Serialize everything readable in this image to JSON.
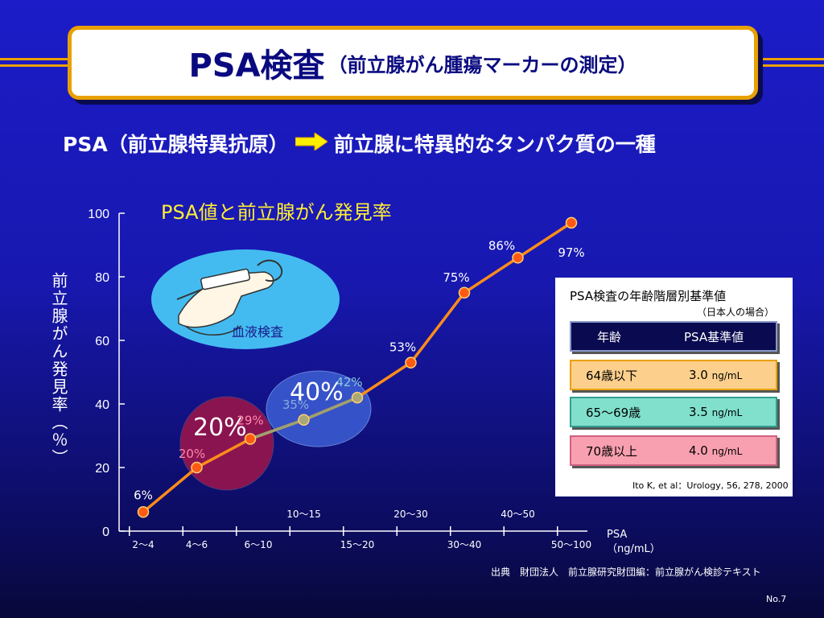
{
  "title": {
    "main": "PSA検査",
    "sub": "（前立腺がん腫瘍マーカーの測定）"
  },
  "subtitle": {
    "left": "PSA（前立腺特異抗原）",
    "right": "前立腺に特異的なタンパク質の一種"
  },
  "chart_data": {
    "type": "line",
    "title": "PSA値と前立腺がん発見率",
    "ylabel": "前立腺がん発見率（％）",
    "xlabel": "PSA\n（ng/mL）",
    "xlabel_lines": [
      "PSA",
      "（ng/mL）"
    ],
    "ylim": [
      0,
      100
    ],
    "yticks": [
      0,
      20,
      40,
      60,
      80,
      100
    ],
    "categories_lower": [
      "2〜4",
      "4〜6",
      "6〜10",
      "15〜20",
      "30〜40",
      "50〜100"
    ],
    "categories_upper": [
      "10〜15",
      "20〜30",
      "40〜50"
    ],
    "categories": [
      "2〜4",
      "4〜6",
      "6〜10",
      "10〜15",
      "15〜20",
      "20〜30",
      "30〜40",
      "40〜50",
      "50〜100"
    ],
    "values": [
      6,
      20,
      29,
      35,
      42,
      53,
      75,
      86,
      97
    ],
    "labels": [
      "6%",
      "20%",
      "29%",
      "35%",
      "42%",
      "53%",
      "75%",
      "86%",
      "97%"
    ],
    "line_color": "#ff8c1a",
    "highlight_color": "#a0a070",
    "annotations": [
      "血液検査",
      "20%",
      "40%"
    ]
  },
  "panel": {
    "title": "PSA検査の年齢階層別基準値",
    "note": "（日本人の場合）",
    "header": [
      "年齢",
      "PSA基準値"
    ],
    "rows": [
      {
        "age": "64歳以下",
        "value": "3.0",
        "unit": "ng/mL"
      },
      {
        "age": "65〜69歳",
        "value": "3.5",
        "unit": "ng/mL"
      },
      {
        "age": "70歳以上",
        "value": "4.0",
        "unit": "ng/mL"
      }
    ],
    "citation": "Ito K, et al：Urology, 56, 278, 2000"
  },
  "source": "出典　財団法人　前立腺研究財団編：前立腺がん検診テキスト",
  "page_number": "No.7",
  "colors": {
    "accent": "#e8a000",
    "title_text": "#0a0a80",
    "chart_title": "#ffee33"
  }
}
